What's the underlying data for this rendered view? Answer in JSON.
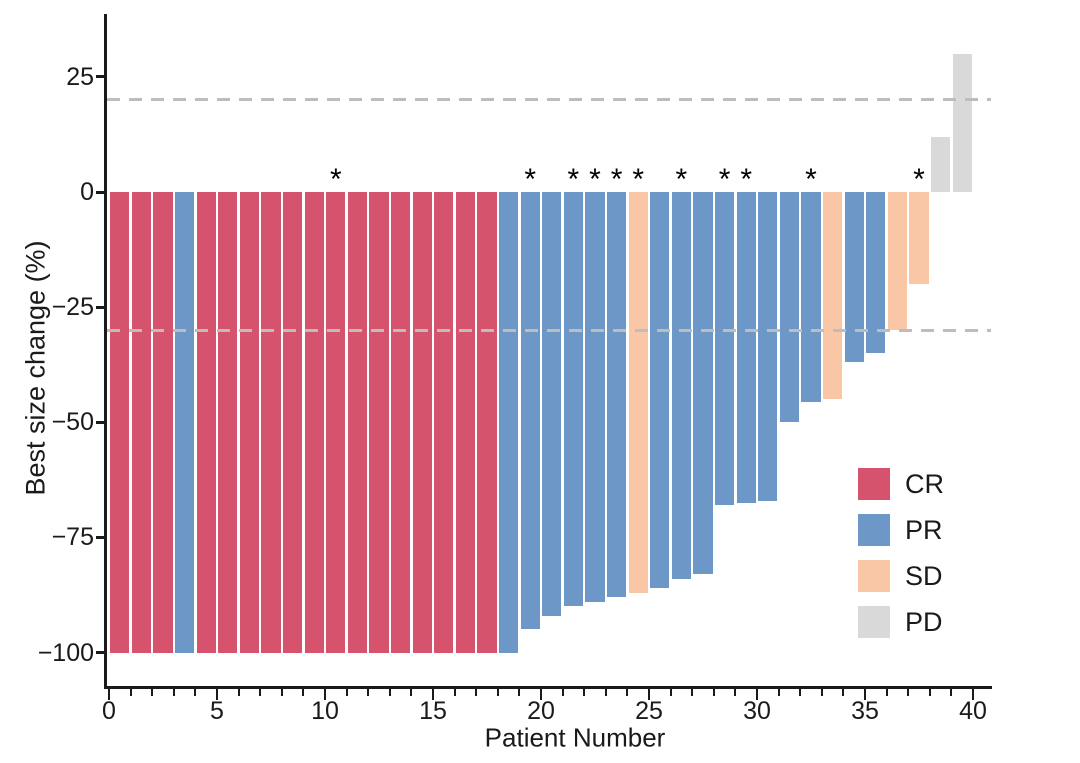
{
  "chart_data": {
    "type": "bar",
    "subtype": "waterfall-best-response",
    "title": "",
    "xlabel": "Patient Number",
    "ylabel": "Best size change (%)",
    "xlim": [
      0,
      40.8
    ],
    "ylim": [
      -107,
      38
    ],
    "grid": false,
    "x_major_ticks": [
      0,
      5,
      10,
      15,
      20,
      25,
      30,
      35,
      40
    ],
    "x_major_tick_labels": [
      "0",
      "5",
      "10",
      "15",
      "20",
      "25",
      "30",
      "35",
      "40"
    ],
    "x_minor_tick_step": 1,
    "y_ticks": [
      25,
      0,
      -25,
      -50,
      -75,
      -100
    ],
    "y_tick_labels": [
      "25",
      "0",
      "−25",
      "−50",
      "−75",
      "−100"
    ],
    "reference_lines": [
      20,
      -30
    ],
    "reference_line_color": "#bdbdbd",
    "asterisk_symbol": "*",
    "legend_position": "lower-right",
    "legend": [
      {
        "label": "CR",
        "color": "#d6536d"
      },
      {
        "label": "PR",
        "color": "#6c97c7"
      },
      {
        "label": "SD",
        "color": "#f9c7a5"
      },
      {
        "label": "PD",
        "color": "#d9d9d9"
      }
    ],
    "patients": [
      {
        "patient": 1,
        "value": -100,
        "response": "CR",
        "asterisk": false
      },
      {
        "patient": 2,
        "value": -100,
        "response": "CR",
        "asterisk": false
      },
      {
        "patient": 3,
        "value": -100,
        "response": "CR",
        "asterisk": false
      },
      {
        "patient": 4,
        "value": -100,
        "response": "PR",
        "asterisk": false
      },
      {
        "patient": 5,
        "value": -100,
        "response": "CR",
        "asterisk": false
      },
      {
        "patient": 6,
        "value": -100,
        "response": "CR",
        "asterisk": false
      },
      {
        "patient": 7,
        "value": -100,
        "response": "CR",
        "asterisk": false
      },
      {
        "patient": 8,
        "value": -100,
        "response": "CR",
        "asterisk": false
      },
      {
        "patient": 9,
        "value": -100,
        "response": "CR",
        "asterisk": false
      },
      {
        "patient": 10,
        "value": -100,
        "response": "CR",
        "asterisk": false
      },
      {
        "patient": 11,
        "value": -100,
        "response": "CR",
        "asterisk": true
      },
      {
        "patient": 12,
        "value": -100,
        "response": "CR",
        "asterisk": false
      },
      {
        "patient": 13,
        "value": -100,
        "response": "CR",
        "asterisk": false
      },
      {
        "patient": 14,
        "value": -100,
        "response": "CR",
        "asterisk": false
      },
      {
        "patient": 15,
        "value": -100,
        "response": "CR",
        "asterisk": false
      },
      {
        "patient": 16,
        "value": -100,
        "response": "CR",
        "asterisk": false
      },
      {
        "patient": 17,
        "value": -100,
        "response": "CR",
        "asterisk": false
      },
      {
        "patient": 18,
        "value": -100,
        "response": "CR",
        "asterisk": false
      },
      {
        "patient": 19,
        "value": -100,
        "response": "PR",
        "asterisk": false
      },
      {
        "patient": 20,
        "value": -95,
        "response": "PR",
        "asterisk": true
      },
      {
        "patient": 21,
        "value": -92,
        "response": "PR",
        "asterisk": false
      },
      {
        "patient": 22,
        "value": -90,
        "response": "PR",
        "asterisk": true
      },
      {
        "patient": 23,
        "value": -89,
        "response": "PR",
        "asterisk": true
      },
      {
        "patient": 24,
        "value": -88,
        "response": "PR",
        "asterisk": true
      },
      {
        "patient": 25,
        "value": -87,
        "response": "SD",
        "asterisk": true
      },
      {
        "patient": 26,
        "value": -86,
        "response": "PR",
        "asterisk": false
      },
      {
        "patient": 27,
        "value": -84,
        "response": "PR",
        "asterisk": true
      },
      {
        "patient": 28,
        "value": -83,
        "response": "PR",
        "asterisk": false
      },
      {
        "patient": 29,
        "value": -68,
        "response": "PR",
        "asterisk": true
      },
      {
        "patient": 30,
        "value": -67.5,
        "response": "PR",
        "asterisk": true
      },
      {
        "patient": 31,
        "value": -67,
        "response": "PR",
        "asterisk": false
      },
      {
        "patient": 32,
        "value": -50,
        "response": "PR",
        "asterisk": false
      },
      {
        "patient": 33,
        "value": -45.5,
        "response": "PR",
        "asterisk": true
      },
      {
        "patient": 34,
        "value": -45,
        "response": "SD",
        "asterisk": false
      },
      {
        "patient": 35,
        "value": -37,
        "response": "PR",
        "asterisk": false
      },
      {
        "patient": 36,
        "value": -35,
        "response": "PR",
        "asterisk": false
      },
      {
        "patient": 37,
        "value": -30,
        "response": "SD",
        "asterisk": false
      },
      {
        "patient": 38,
        "value": -20,
        "response": "SD",
        "asterisk": true
      },
      {
        "patient": 39,
        "value": 12,
        "response": "PD",
        "asterisk": false
      },
      {
        "patient": 40,
        "value": 30,
        "response": "PD",
        "asterisk": false
      }
    ]
  }
}
